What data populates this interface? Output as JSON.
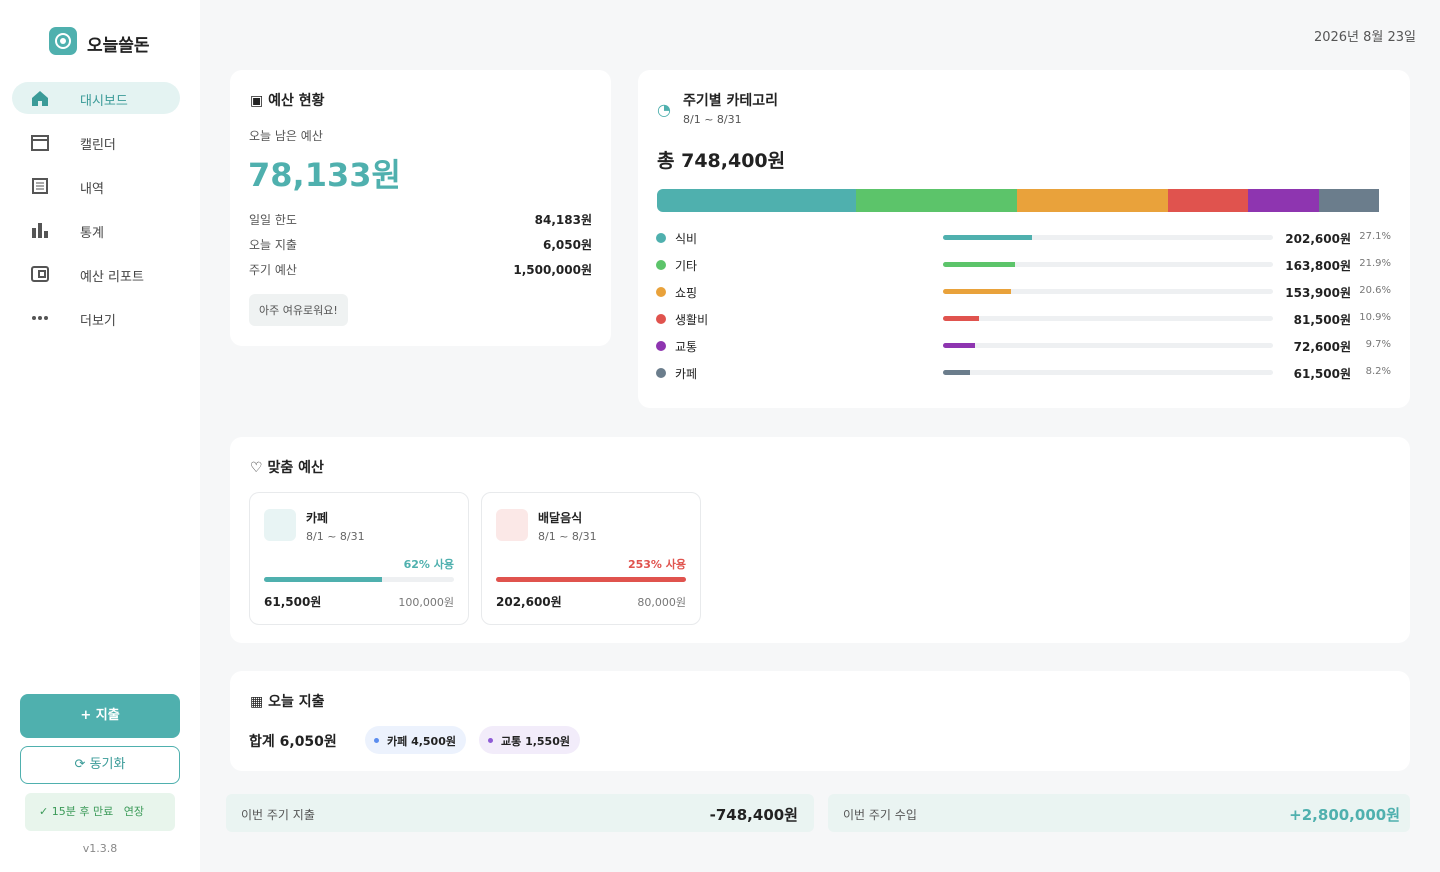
{
  "sidebar": {
    "brand": "오늘쓸돈",
    "nav": [
      "대시보드",
      "캘린더",
      "내역",
      "통계",
      "예산 리포트",
      "더보기"
    ],
    "add_button": "지출",
    "sync_button": "동기화",
    "session": "15분 후 만료",
    "extend": "연장",
    "version": "v1.3.8"
  },
  "date": "2026년 8월 23일",
  "budget_status": {
    "title": "예산 현황",
    "remaining_label": "오늘 남은 예산",
    "remaining": "78,133원",
    "rows": [
      {
        "label": "일일 한도",
        "value": "84,183원"
      },
      {
        "label": "오늘 지출",
        "value": "6,050원"
      },
      {
        "label": "주기 예산",
        "value": "1,500,000원"
      }
    ],
    "badge": "아주 여유로워요!"
  },
  "category_chart": {
    "title": "주기별 카테고리",
    "period": "8/1 ~ 8/31",
    "total": "총 748,400원",
    "categories": [
      {
        "name": "식비",
        "color": "#4fb0ae",
        "amount": "202,600원",
        "share": {
          "value": 27.1,
          "label": "27.1%"
        }
      },
      {
        "name": "기타",
        "color": "#5cc46a",
        "amount": "163,800원",
        "share": {
          "value": 21.9,
          "label": "21.9%"
        }
      },
      {
        "name": "쇼핑",
        "color": "#e9a23b",
        "amount": "153,900원",
        "share": {
          "value": 20.6,
          "label": "20.6%"
        }
      },
      {
        "name": "생활비",
        "color": "#e0534e",
        "amount": "81,500원",
        "share": {
          "value": 10.9,
          "label": "10.9%"
        }
      },
      {
        "name": "교통",
        "color": "#8e35b0",
        "amount": "72,600원",
        "share": {
          "value": 9.7,
          "label": "9.7%"
        }
      },
      {
        "name": "카페",
        "color": "#6b7d8c",
        "amount": "61,500원",
        "share": {
          "value": 8.2,
          "label": "8.2%"
        }
      }
    ]
  },
  "custom_budget": {
    "title": "맞춤 예산",
    "cards": [
      {
        "name": "카페",
        "period": "8/1 ~ 8/31",
        "usage": {
          "value": 62,
          "label": "62% 사용"
        },
        "spent": "61,500원",
        "limit": "100,000원",
        "color": "#4fb0ae"
      },
      {
        "name": "배달음식",
        "period": "8/1 ~ 8/31",
        "usage": {
          "value": 253,
          "label": "253% 사용"
        },
        "spent": "202,600원",
        "limit": "80,000원",
        "color": "#e0534e"
      }
    ]
  },
  "today_spending": {
    "title": "오늘 지출",
    "total": "합계 6,050원",
    "chips": [
      {
        "label": "카페 4,500원",
        "color": "#5b8def"
      },
      {
        "label": "교통 1,550원",
        "color": "#8e5bd6"
      }
    ]
  },
  "summary": [
    {
      "label": "이번 주기 지출",
      "value": "-748,400원"
    },
    {
      "label": "이번 주기 수입",
      "value": "+2,800,000원"
    }
  ]
}
